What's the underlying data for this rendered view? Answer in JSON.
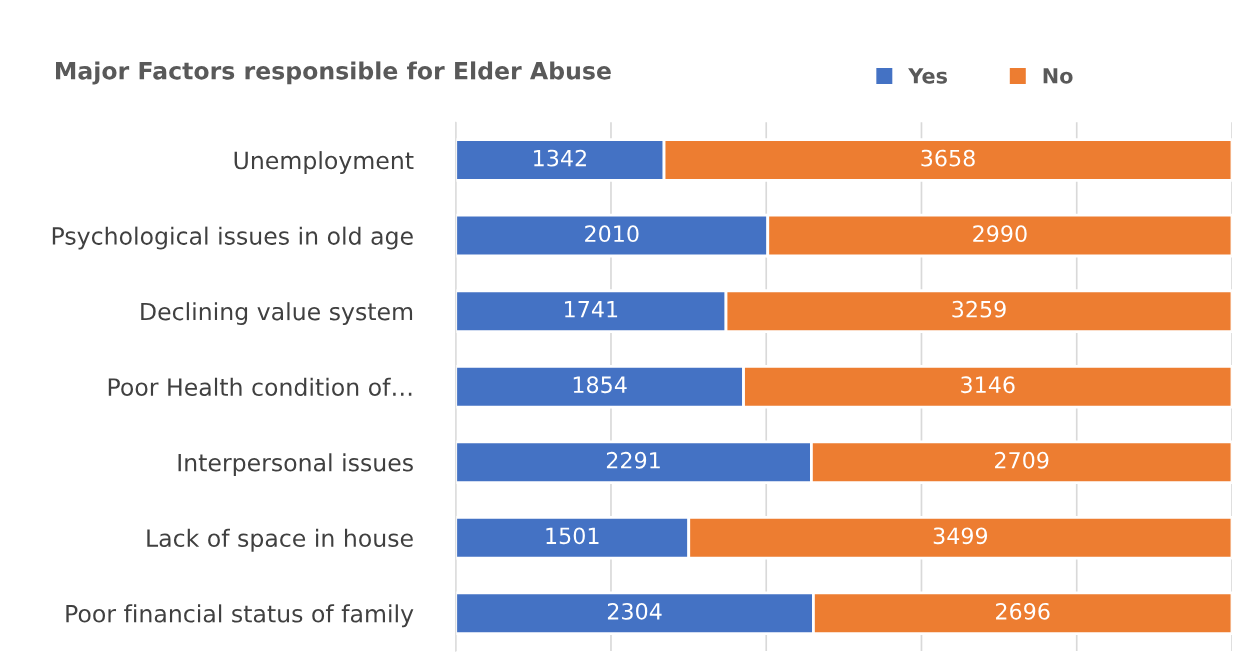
{
  "chart_data": {
    "type": "bar",
    "orientation": "horizontal",
    "stacked": true,
    "title": "Major Factors responsible for Elder Abuse",
    "categories": [
      "Unemployment",
      "Psychological issues in old age",
      "Declining value system",
      "Poor Health condition of…",
      "Interpersonal issues",
      "Lack of space in house",
      "Poor financial status of family"
    ],
    "series": [
      {
        "name": "Yes",
        "color": "#4472c4",
        "values": [
          1342,
          2010,
          1741,
          1854,
          2291,
          1501,
          2304
        ]
      },
      {
        "name": "No",
        "color": "#ed7d31",
        "values": [
          3658,
          2990,
          3259,
          3146,
          2709,
          3499,
          2696
        ]
      }
    ],
    "xlim": [
      0,
      5000
    ],
    "xticks": [
      {
        "value": 0,
        "label": null
      },
      {
        "value": 1000,
        "label": null
      },
      {
        "value": 2000,
        "label": null
      },
      {
        "value": 3000,
        "label": null
      },
      {
        "value": 4000,
        "label": null
      },
      {
        "value": 5000,
        "label": null
      }
    ],
    "tick_labels": "y",
    "grid": "x",
    "legend": "top right",
    "data_labels": true
  }
}
